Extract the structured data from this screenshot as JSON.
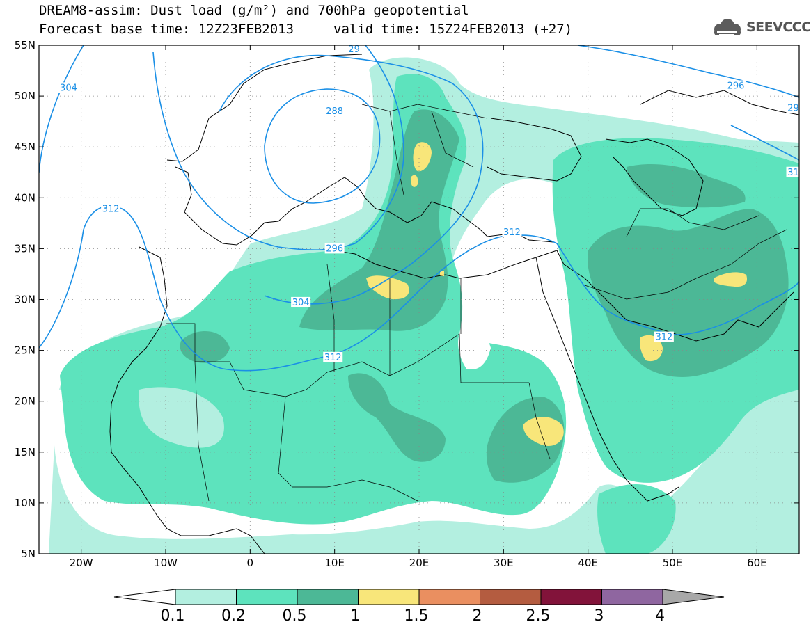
{
  "header": {
    "title_line1": "DREAM8-assim: Dust load (g/m²) and 700hPa geopotential",
    "forecast_base": "Forecast base time: 12Z23FEB2013",
    "valid_time": "valid time: 15Z24FEB2013 (+27)",
    "logo_text": "SEEVCCC",
    "logo_icon": "cloud-logo-icon"
  },
  "map": {
    "lat_range": [
      5,
      55
    ],
    "lon_range": [
      -25,
      65
    ],
    "lat_labels": [
      "55N",
      "50N",
      "45N",
      "40N",
      "35N",
      "30N",
      "25N",
      "20N",
      "15N",
      "10N",
      "5N"
    ],
    "lat_values": [
      55,
      50,
      45,
      40,
      35,
      30,
      25,
      20,
      15,
      10,
      5
    ],
    "lon_labels": [
      "20W",
      "10W",
      "0",
      "10E",
      "20E",
      "30E",
      "40E",
      "50E",
      "60E"
    ],
    "lon_values": [
      -20,
      -10,
      0,
      10,
      20,
      30,
      40,
      50,
      60
    ],
    "grid": "dotted",
    "contour_color": "#1a8fe6",
    "contour_labels": [
      {
        "text": "304",
        "lon": -21.5,
        "lat": 50.8
      },
      {
        "text": "29",
        "lon": 12.3,
        "lat": 54.6
      },
      {
        "text": "288",
        "lon": 10.0,
        "lat": 48.5
      },
      {
        "text": "296",
        "lon": 57.5,
        "lat": 51.0
      },
      {
        "text": "29",
        "lon": 64.3,
        "lat": 48.8
      },
      {
        "text": "312",
        "lon": -16.5,
        "lat": 38.9
      },
      {
        "text": "296",
        "lon": 10.0,
        "lat": 35.0
      },
      {
        "text": "312",
        "lon": 31.0,
        "lat": 36.6
      },
      {
        "text": "304",
        "lon": 6.0,
        "lat": 29.7
      },
      {
        "text": "312",
        "lon": 9.8,
        "lat": 24.3
      },
      {
        "text": "312",
        "lon": 49.0,
        "lat": 26.3
      },
      {
        "text": "31",
        "lon": 64.3,
        "lat": 42.5
      }
    ]
  },
  "colorbar": {
    "labels": [
      "0.1",
      "0.2",
      "0.5",
      "1",
      "1.5",
      "2",
      "2.5",
      "3",
      "4"
    ],
    "colors": [
      "#b3efe0",
      "#5de3bd",
      "#4cb896",
      "#f8e67a",
      "#ea8f60",
      "#b45c40",
      "#82133a",
      "#8f66a0"
    ],
    "under_color": "#ffffff",
    "over_color": "#a8a8a8"
  }
}
